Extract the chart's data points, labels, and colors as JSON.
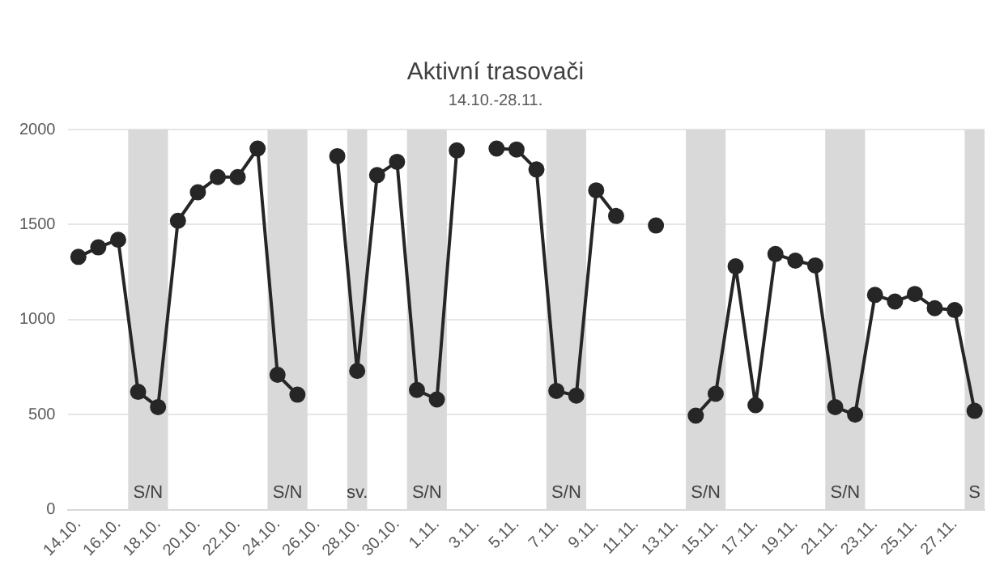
{
  "chart_data": {
    "type": "line",
    "title": "Aktivní trasovači",
    "subtitle": "14.10.-28.11.",
    "x": [
      "--10-14",
      "--10-15",
      "--10-16",
      "--10-17",
      "--10-18",
      "--10-19",
      "--10-20",
      "--10-21",
      "--10-22",
      "--10-23",
      "--10-24",
      "--10-25",
      "--10-26",
      "--10-27",
      "--10-28",
      "--10-29",
      "--10-30",
      "--10-31",
      "--11-01",
      "--11-02",
      "--11-03",
      "--11-04",
      "--11-05",
      "--11-06",
      "--11-07",
      "--11-08",
      "--11-09",
      "--11-10",
      "--11-11",
      "--11-12",
      "--11-13",
      "--11-14",
      "--11-15",
      "--11-16",
      "--11-17",
      "--11-18",
      "--11-19",
      "--11-20",
      "--11-21",
      "--11-22",
      "--11-23",
      "--11-24",
      "--11-25",
      "--11-26",
      "--11-27",
      "--11-28"
    ],
    "series": [
      {
        "color": "#262626",
        "values": [
          1330,
          1380,
          1420,
          620,
          540,
          1520,
          1670,
          1750,
          1750,
          1900,
          710,
          605,
          null,
          1860,
          730,
          1760,
          1830,
          630,
          580,
          1890,
          null,
          1900,
          1895,
          1790,
          625,
          600,
          1680,
          1545,
          null,
          1495,
          null,
          495,
          610,
          1280,
          550,
          1345,
          1310,
          1285,
          540,
          500,
          1130,
          1095,
          1135,
          1060,
          1050,
          520
        ]
      }
    ],
    "marker": "circle",
    "line_style": "solid",
    "grid": "y",
    "legend": false,
    "ylim": [
      0,
      2000
    ],
    "yticks": [
      0,
      500,
      1000,
      1500,
      2000
    ],
    "xlim": [
      "--10-13T12:00",
      "--11-28T12:00"
    ],
    "xticks": [
      {
        "value": "--10-14",
        "label": "14.10."
      },
      {
        "value": "--10-16",
        "label": "16.10."
      },
      {
        "value": "--10-18",
        "label": "18.10."
      },
      {
        "value": "--10-20",
        "label": "20.10."
      },
      {
        "value": "--10-22",
        "label": "22.10."
      },
      {
        "value": "--10-24",
        "label": "24.10."
      },
      {
        "value": "--10-26",
        "label": "26.10."
      },
      {
        "value": "--10-28",
        "label": "28.10."
      },
      {
        "value": "--10-30",
        "label": "30.10."
      },
      {
        "value": "--11-01",
        "label": "1.11."
      },
      {
        "value": "--11-03",
        "label": "3.11."
      },
      {
        "value": "--11-05",
        "label": "5.11."
      },
      {
        "value": "--11-07",
        "label": "7.11."
      },
      {
        "value": "--11-09",
        "label": "9.11."
      },
      {
        "value": "--11-11",
        "label": "11.11."
      },
      {
        "value": "--11-13",
        "label": "13.11."
      },
      {
        "value": "--11-15",
        "label": "15.11."
      },
      {
        "value": "--11-17",
        "label": "17.11."
      },
      {
        "value": "--11-19",
        "label": "19.11."
      },
      {
        "value": "--11-21",
        "label": "21.11."
      },
      {
        "value": "--11-23",
        "label": "23.11."
      },
      {
        "value": "--11-25",
        "label": "25.11."
      },
      {
        "value": "--11-27",
        "label": "27.11."
      }
    ],
    "bands": [
      {
        "axis": "x",
        "from": "--10-16T12:00",
        "to": "--10-18T12:00",
        "label": "S/N",
        "color": "#d9d9d9"
      },
      {
        "axis": "x",
        "from": "--10-23T12:00",
        "to": "--10-25T12:00",
        "label": "S/N",
        "color": "#d9d9d9"
      },
      {
        "axis": "x",
        "from": "--10-27T12:00",
        "to": "--10-28T12:00",
        "label": "sv.",
        "color": "#d9d9d9"
      },
      {
        "axis": "x",
        "from": "--10-30T12:00",
        "to": "--11-01T12:00",
        "label": "S/N",
        "color": "#d9d9d9"
      },
      {
        "axis": "x",
        "from": "--11-06T12:00",
        "to": "--11-08T12:00",
        "label": "S/N",
        "color": "#d9d9d9"
      },
      {
        "axis": "x",
        "from": "--11-13T12:00",
        "to": "--11-15T12:00",
        "label": "S/N",
        "color": "#d9d9d9"
      },
      {
        "axis": "x",
        "from": "--11-20T12:00",
        "to": "--11-22T12:00",
        "label": "S/N",
        "color": "#d9d9d9"
      },
      {
        "axis": "x",
        "from": "--11-27T12:00",
        "to": "--11-28T12:00",
        "label": "S",
        "color": "#d9d9d9"
      }
    ]
  }
}
